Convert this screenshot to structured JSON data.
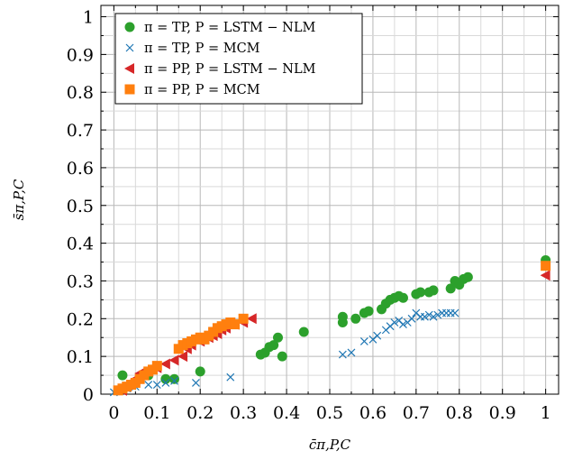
{
  "chart_data": {
    "type": "scatter",
    "title": "",
    "xlabel": "c̄π,P,C",
    "ylabel": "s̄π,P,C",
    "xlim": [
      -0.03,
      1.03
    ],
    "ylim": [
      0,
      1.03
    ],
    "xticks": [
      0,
      0.1,
      0.2,
      0.3,
      0.4,
      0.5,
      0.6,
      0.7,
      0.8,
      0.9,
      1
    ],
    "yticks": [
      0,
      0.1,
      0.2,
      0.3,
      0.4,
      0.5,
      0.6,
      0.7,
      0.8,
      0.9,
      1
    ],
    "xtick_labels": [
      "0",
      "0.1",
      "0.2",
      "0.3",
      "0.4",
      "0.5",
      "0.6",
      "0.7",
      "0.8",
      "0.9",
      "1"
    ],
    "ytick_labels": [
      "0",
      "0.1",
      "0.2",
      "0.3",
      "0.4",
      "0.5",
      "0.6",
      "0.7",
      "0.8",
      "0.9",
      "1"
    ],
    "grid": true,
    "legend_position": "top-left",
    "series": [
      {
        "name": "π = TP,  P = LSTM − NLM",
        "marker": "circle",
        "color": "#2ca02c",
        "x": [
          0.02,
          0.08,
          0.12,
          0.14,
          0.2,
          0.34,
          0.35,
          0.36,
          0.37,
          0.38,
          0.39,
          0.44,
          0.53,
          0.53,
          0.56,
          0.58,
          0.59,
          0.62,
          0.63,
          0.64,
          0.65,
          0.66,
          0.67,
          0.7,
          0.71,
          0.73,
          0.74,
          0.78,
          0.79,
          0.8,
          0.81,
          0.82,
          1.0
        ],
        "y": [
          0.05,
          0.05,
          0.04,
          0.04,
          0.06,
          0.105,
          0.11,
          0.125,
          0.13,
          0.15,
          0.1,
          0.165,
          0.19,
          0.205,
          0.2,
          0.215,
          0.22,
          0.225,
          0.24,
          0.25,
          0.255,
          0.26,
          0.255,
          0.265,
          0.27,
          0.27,
          0.275,
          0.28,
          0.3,
          0.29,
          0.305,
          0.31,
          0.355
        ]
      },
      {
        "name": "π = TP,  P = MCM",
        "marker": "x",
        "color": "#1f77b4",
        "x": [
          0.0,
          0.01,
          0.03,
          0.05,
          0.08,
          0.1,
          0.12,
          0.14,
          0.19,
          0.27,
          0.53,
          0.55,
          0.58,
          0.6,
          0.61,
          0.63,
          0.64,
          0.65,
          0.66,
          0.67,
          0.68,
          0.69,
          0.7,
          0.71,
          0.72,
          0.73,
          0.74,
          0.75,
          0.76,
          0.77,
          0.78,
          0.79
        ],
        "y": [
          0.005,
          0.01,
          0.015,
          0.02,
          0.025,
          0.025,
          0.03,
          0.035,
          0.03,
          0.045,
          0.105,
          0.11,
          0.14,
          0.145,
          0.155,
          0.17,
          0.18,
          0.19,
          0.195,
          0.185,
          0.19,
          0.2,
          0.215,
          0.205,
          0.205,
          0.21,
          0.205,
          0.21,
          0.215,
          0.215,
          0.215,
          0.215
        ]
      },
      {
        "name": "π = PP,  P = LSTM − NLM",
        "marker": "triangle-left",
        "color": "#d62728",
        "x": [
          0.02,
          0.03,
          0.04,
          0.05,
          0.06,
          0.08,
          0.1,
          0.12,
          0.14,
          0.16,
          0.17,
          0.18,
          0.2,
          0.22,
          0.23,
          0.24,
          0.25,
          0.26,
          0.28,
          0.3,
          0.32,
          1.0
        ],
        "y": [
          0.01,
          0.02,
          0.03,
          0.04,
          0.055,
          0.06,
          0.07,
          0.08,
          0.09,
          0.1,
          0.12,
          0.13,
          0.14,
          0.15,
          0.155,
          0.16,
          0.17,
          0.175,
          0.185,
          0.19,
          0.2,
          0.315
        ]
      },
      {
        "name": "π = PP,  P = MCM",
        "marker": "square",
        "color": "#ff7f0e",
        "x": [
          0.01,
          0.02,
          0.03,
          0.04,
          0.05,
          0.06,
          0.07,
          0.08,
          0.09,
          0.1,
          0.15,
          0.16,
          0.17,
          0.18,
          0.19,
          0.2,
          0.21,
          0.22,
          0.23,
          0.24,
          0.25,
          0.26,
          0.27,
          0.28,
          0.3,
          1.0
        ],
        "y": [
          0.01,
          0.015,
          0.02,
          0.025,
          0.03,
          0.04,
          0.05,
          0.06,
          0.065,
          0.075,
          0.12,
          0.13,
          0.135,
          0.14,
          0.145,
          0.15,
          0.145,
          0.155,
          0.165,
          0.175,
          0.18,
          0.185,
          0.19,
          0.185,
          0.2,
          0.34
        ]
      }
    ]
  }
}
